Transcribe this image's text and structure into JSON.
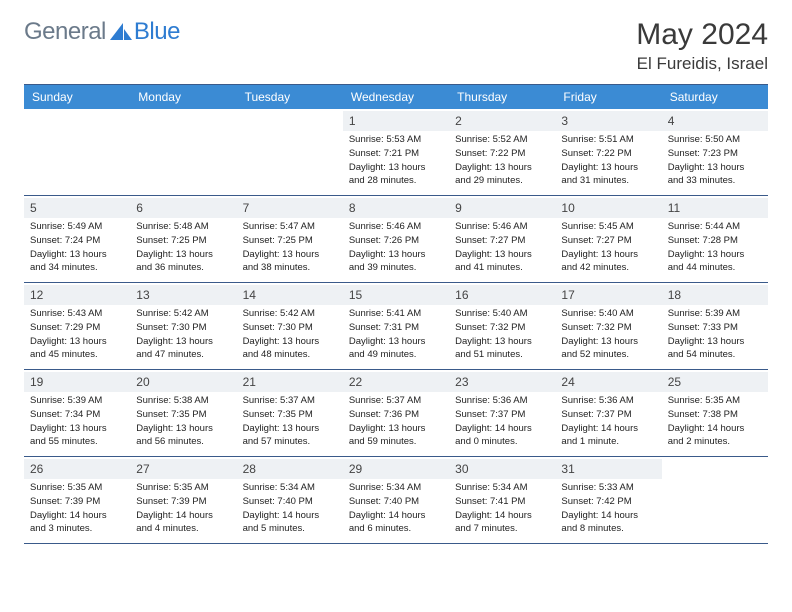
{
  "brand": {
    "part1": "General",
    "part2": "Blue"
  },
  "title": "May 2024",
  "location": "El Fureidis, Israel",
  "colors": {
    "header_bg": "#3b8bd4",
    "daynum_bg": "#eef1f4",
    "rule": "#3a5a8a",
    "brand_gray": "#6b7a8a",
    "brand_blue": "#2e7cd1"
  },
  "weekdays": [
    "Sunday",
    "Monday",
    "Tuesday",
    "Wednesday",
    "Thursday",
    "Friday",
    "Saturday"
  ],
  "weeks": [
    [
      {
        "blank": true
      },
      {
        "blank": true
      },
      {
        "blank": true
      },
      {
        "n": "1",
        "sr": "5:53 AM",
        "ss": "7:21 PM",
        "dl": "13 hours and 28 minutes."
      },
      {
        "n": "2",
        "sr": "5:52 AM",
        "ss": "7:22 PM",
        "dl": "13 hours and 29 minutes."
      },
      {
        "n": "3",
        "sr": "5:51 AM",
        "ss": "7:22 PM",
        "dl": "13 hours and 31 minutes."
      },
      {
        "n": "4",
        "sr": "5:50 AM",
        "ss": "7:23 PM",
        "dl": "13 hours and 33 minutes."
      }
    ],
    [
      {
        "n": "5",
        "sr": "5:49 AM",
        "ss": "7:24 PM",
        "dl": "13 hours and 34 minutes."
      },
      {
        "n": "6",
        "sr": "5:48 AM",
        "ss": "7:25 PM",
        "dl": "13 hours and 36 minutes."
      },
      {
        "n": "7",
        "sr": "5:47 AM",
        "ss": "7:25 PM",
        "dl": "13 hours and 38 minutes."
      },
      {
        "n": "8",
        "sr": "5:46 AM",
        "ss": "7:26 PM",
        "dl": "13 hours and 39 minutes."
      },
      {
        "n": "9",
        "sr": "5:46 AM",
        "ss": "7:27 PM",
        "dl": "13 hours and 41 minutes."
      },
      {
        "n": "10",
        "sr": "5:45 AM",
        "ss": "7:27 PM",
        "dl": "13 hours and 42 minutes."
      },
      {
        "n": "11",
        "sr": "5:44 AM",
        "ss": "7:28 PM",
        "dl": "13 hours and 44 minutes."
      }
    ],
    [
      {
        "n": "12",
        "sr": "5:43 AM",
        "ss": "7:29 PM",
        "dl": "13 hours and 45 minutes."
      },
      {
        "n": "13",
        "sr": "5:42 AM",
        "ss": "7:30 PM",
        "dl": "13 hours and 47 minutes."
      },
      {
        "n": "14",
        "sr": "5:42 AM",
        "ss": "7:30 PM",
        "dl": "13 hours and 48 minutes."
      },
      {
        "n": "15",
        "sr": "5:41 AM",
        "ss": "7:31 PM",
        "dl": "13 hours and 49 minutes."
      },
      {
        "n": "16",
        "sr": "5:40 AM",
        "ss": "7:32 PM",
        "dl": "13 hours and 51 minutes."
      },
      {
        "n": "17",
        "sr": "5:40 AM",
        "ss": "7:32 PM",
        "dl": "13 hours and 52 minutes."
      },
      {
        "n": "18",
        "sr": "5:39 AM",
        "ss": "7:33 PM",
        "dl": "13 hours and 54 minutes."
      }
    ],
    [
      {
        "n": "19",
        "sr": "5:39 AM",
        "ss": "7:34 PM",
        "dl": "13 hours and 55 minutes."
      },
      {
        "n": "20",
        "sr": "5:38 AM",
        "ss": "7:35 PM",
        "dl": "13 hours and 56 minutes."
      },
      {
        "n": "21",
        "sr": "5:37 AM",
        "ss": "7:35 PM",
        "dl": "13 hours and 57 minutes."
      },
      {
        "n": "22",
        "sr": "5:37 AM",
        "ss": "7:36 PM",
        "dl": "13 hours and 59 minutes."
      },
      {
        "n": "23",
        "sr": "5:36 AM",
        "ss": "7:37 PM",
        "dl": "14 hours and 0 minutes."
      },
      {
        "n": "24",
        "sr": "5:36 AM",
        "ss": "7:37 PM",
        "dl": "14 hours and 1 minute."
      },
      {
        "n": "25",
        "sr": "5:35 AM",
        "ss": "7:38 PM",
        "dl": "14 hours and 2 minutes."
      }
    ],
    [
      {
        "n": "26",
        "sr": "5:35 AM",
        "ss": "7:39 PM",
        "dl": "14 hours and 3 minutes."
      },
      {
        "n": "27",
        "sr": "5:35 AM",
        "ss": "7:39 PM",
        "dl": "14 hours and 4 minutes."
      },
      {
        "n": "28",
        "sr": "5:34 AM",
        "ss": "7:40 PM",
        "dl": "14 hours and 5 minutes."
      },
      {
        "n": "29",
        "sr": "5:34 AM",
        "ss": "7:40 PM",
        "dl": "14 hours and 6 minutes."
      },
      {
        "n": "30",
        "sr": "5:34 AM",
        "ss": "7:41 PM",
        "dl": "14 hours and 7 minutes."
      },
      {
        "n": "31",
        "sr": "5:33 AM",
        "ss": "7:42 PM",
        "dl": "14 hours and 8 minutes."
      },
      {
        "blank": true
      }
    ]
  ],
  "labels": {
    "sunrise": "Sunrise:",
    "sunset": "Sunset:",
    "daylight": "Daylight:"
  }
}
